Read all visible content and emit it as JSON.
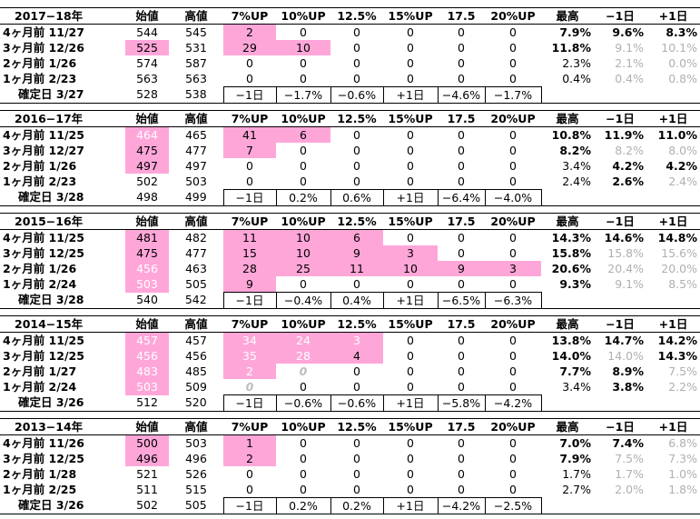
{
  "columns": [
    "",
    "始値",
    "高値",
    "7%UP",
    "10%UP",
    "12.5%",
    "15%UP",
    "17.5",
    "20%UP",
    "最高",
    "−1日",
    "+1日"
  ],
  "blocks": [
    {
      "title": "2017−18年",
      "rows": [
        {
          "label": "4ヶ月前  11/27",
          "open": "544",
          "high": "545",
          "c7": "2",
          "c10": "0",
          "c125": "0",
          "c15": "0",
          "c175": "0",
          "c20": "0",
          "max": "7.9%",
          "m1": "9.6%",
          "p1": "8.3%"
        },
        {
          "label": "3ヶ月前  12/26",
          "open": "525",
          "high": "531",
          "c7": "29",
          "c10": "10",
          "c125": "0",
          "c15": "0",
          "c175": "0",
          "c20": "0",
          "max": "11.8%",
          "m1": "9.1%",
          "p1": "10.1%"
        },
        {
          "label": "2ヶ月前   1/26",
          "open": "574",
          "high": "587",
          "c7": "0",
          "c10": "0",
          "c125": "0",
          "c15": "0",
          "c175": "0",
          "c20": "0",
          "max": "2.3%",
          "m1": "2.1%",
          "p1": "0.0%"
        },
        {
          "label": "1ヶ月前   2/23",
          "open": "563",
          "high": "563",
          "c7": "0",
          "c10": "0",
          "c125": "0",
          "c15": "0",
          "c175": "0",
          "c20": "0",
          "max": "0.4%",
          "m1": "0.4%",
          "p1": "0.8%"
        }
      ],
      "kakutei": {
        "label": "確定日  3/27",
        "open": "528",
        "high": "538",
        "v1": "−1日",
        "v2": "−1.7%",
        "v3": "−0.6%",
        "v4": "+1日",
        "v5": "−4.6%",
        "v6": "−1.7%"
      }
    },
    {
      "title": "2016−17年",
      "rows": [
        {
          "label": "4ヶ月前  11/25",
          "open": "464",
          "high": "465",
          "c7": "41",
          "c10": "6",
          "c125": "0",
          "c15": "0",
          "c175": "0",
          "c20": "0",
          "max": "10.8%",
          "m1": "11.9%",
          "p1": "11.0%"
        },
        {
          "label": "3ヶ月前  12/27",
          "open": "475",
          "high": "477",
          "c7": "7",
          "c10": "0",
          "c125": "0",
          "c15": "0",
          "c175": "0",
          "c20": "0",
          "max": "8.2%",
          "m1": "8.2%",
          "p1": "8.0%"
        },
        {
          "label": "2ヶ月前   1/26",
          "open": "497",
          "high": "497",
          "c7": "0",
          "c10": "0",
          "c125": "0",
          "c15": "0",
          "c175": "0",
          "c20": "0",
          "max": "3.4%",
          "m1": "4.2%",
          "p1": "4.2%"
        },
        {
          "label": "1ヶ月前   2/23",
          "open": "502",
          "high": "503",
          "c7": "0",
          "c10": "0",
          "c125": "0",
          "c15": "0",
          "c175": "0",
          "c20": "0",
          "max": "2.4%",
          "m1": "2.6%",
          "p1": "2.4%"
        }
      ],
      "kakutei": {
        "label": "確定日  3/28",
        "open": "498",
        "high": "499",
        "v1": "−1日",
        "v2": "0.2%",
        "v3": "0.6%",
        "v4": "+1日",
        "v5": "−6.4%",
        "v6": "−4.0%"
      }
    },
    {
      "title": "2015−16年",
      "rows": [
        {
          "label": "4ヶ月前  11/25",
          "open": "481",
          "high": "482",
          "c7": "11",
          "c10": "10",
          "c125": "6",
          "c15": "0",
          "c175": "0",
          "c20": "0",
          "max": "14.3%",
          "m1": "14.6%",
          "p1": "14.8%"
        },
        {
          "label": "3ヶ月前  12/25",
          "open": "475",
          "high": "477",
          "c7": "15",
          "c10": "10",
          "c125": "9",
          "c15": "3",
          "c175": "0",
          "c20": "0",
          "max": "15.8%",
          "m1": "15.8%",
          "p1": "15.6%"
        },
        {
          "label": "2ヶ月前   1/26",
          "open": "456",
          "high": "463",
          "c7": "28",
          "c10": "25",
          "c125": "11",
          "c15": "10",
          "c175": "9",
          "c20": "3",
          "max": "20.6%",
          "m1": "20.4%",
          "p1": "20.0%"
        },
        {
          "label": "1ヶ月前   2/24",
          "open": "503",
          "high": "505",
          "c7": "9",
          "c10": "0",
          "c125": "0",
          "c15": "0",
          "c175": "0",
          "c20": "0",
          "max": "9.3%",
          "m1": "9.1%",
          "p1": "8.5%"
        }
      ],
      "kakutei": {
        "label": "確定日  3/28",
        "open": "540",
        "high": "542",
        "v1": "−1日",
        "v2": "−0.4%",
        "v3": "0.4%",
        "v4": "+1日",
        "v5": "−6.5%",
        "v6": "−6.3%"
      }
    },
    {
      "title": "2014−15年",
      "rows": [
        {
          "label": "4ヶ月前  11/25",
          "open": "457",
          "high": "457",
          "c7": "34",
          "c10": "24",
          "c125": "3",
          "c15": "0",
          "c175": "0",
          "c20": "0",
          "max": "13.8%",
          "m1": "14.7%",
          "p1": "14.2%"
        },
        {
          "label": "3ヶ月前  12/25",
          "open": "456",
          "high": "456",
          "c7": "35",
          "c10": "28",
          "c125": "4",
          "c15": "0",
          "c175": "0",
          "c20": "0",
          "max": "14.0%",
          "m1": "14.0%",
          "p1": "14.3%"
        },
        {
          "label": "2ヶ月前   1/27",
          "open": "483",
          "high": "485",
          "c7": "2",
          "c10": "0",
          "c125": "0",
          "c15": "0",
          "c175": "0",
          "c20": "0",
          "max": "7.7%",
          "m1": "8.9%",
          "p1": "7.5%"
        },
        {
          "label": "1ヶ月前   2/24",
          "open": "503",
          "high": "509",
          "c7": "0",
          "c10": "0",
          "c125": "0",
          "c15": "0",
          "c175": "0",
          "c20": "0",
          "max": "3.4%",
          "m1": "3.8%",
          "p1": "2.2%"
        }
      ],
      "kakutei": {
        "label": "確定日  3/26",
        "open": "512",
        "high": "520",
        "v1": "−1日",
        "v2": "−0.6%",
        "v3": "−0.6%",
        "v4": "+1日",
        "v5": "−5.8%",
        "v6": "−4.2%"
      }
    },
    {
      "title": "2013−14年",
      "rows": [
        {
          "label": "4ヶ月前  11/26",
          "open": "500",
          "high": "503",
          "c7": "1",
          "c10": "0",
          "c125": "0",
          "c15": "0",
          "c175": "0",
          "c20": "0",
          "max": "7.0%",
          "m1": "7.4%",
          "p1": "6.8%"
        },
        {
          "label": "3ヶ月前  12/25",
          "open": "496",
          "high": "496",
          "c7": "2",
          "c10": "0",
          "c125": "0",
          "c15": "0",
          "c175": "0",
          "c20": "0",
          "max": "7.9%",
          "m1": "7.5%",
          "p1": "7.3%"
        },
        {
          "label": "2ヶ月前   1/28",
          "open": "521",
          "high": "526",
          "c7": "0",
          "c10": "0",
          "c125": "0",
          "c15": "0",
          "c175": "0",
          "c20": "0",
          "max": "1.7%",
          "m1": "1.7%",
          "p1": "1.0%"
        },
        {
          "label": "1ヶ月前   2/25",
          "open": "511",
          "high": "515",
          "c7": "0",
          "c10": "0",
          "c125": "0",
          "c15": "0",
          "c175": "0",
          "c20": "0",
          "max": "2.7%",
          "m1": "2.0%",
          "p1": "1.8%"
        }
      ],
      "kakutei": {
        "label": "確定日  3/26",
        "open": "502",
        "high": "505",
        "v1": "−1日",
        "v2": "0.2%",
        "v3": "0.2%",
        "v4": "+1日",
        "v5": "−4.2%",
        "v6": "−2.5%"
      }
    }
  ],
  "colors": {
    "highlight": "#ffa6d9",
    "faded": "#b0b0b0"
  }
}
